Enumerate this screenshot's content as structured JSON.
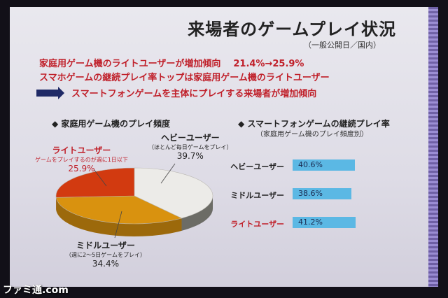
{
  "slide": {
    "title": "来場者のゲームプレイ状況",
    "subtitle": "（一般公開日／国内）",
    "line1_text": "家庭用ゲーム機のライトユーザーが増加傾向",
    "line1_value": "21.4%→25.9%",
    "line2_text": "スマホゲームの継続プレイ率トップは家庭用ゲーム機のライトユーザー",
    "line3_text": "スマートフォンゲームを主体にプレイする来場者が増加傾向",
    "colors": {
      "accent_red": "#c0202a",
      "arrow_navy": "#1f2a66"
    }
  },
  "logo_text": "ファミ通.com",
  "chart_data": [
    {
      "type": "pie",
      "title": "◆ 家庭用ゲーム機のプレイ頻度",
      "slices": [
        {
          "name": "ヘビーユーザー",
          "note": "（ほとんど毎日ゲームをプレイ）",
          "value": 39.7,
          "label": "39.7%",
          "color": "#ecebe8"
        },
        {
          "name": "ミドルユーザー",
          "note": "（週に2～5日ゲームをプレイ）",
          "value": 34.4,
          "label": "34.4%",
          "color": "#d9920f"
        },
        {
          "name": "ライトユーザー",
          "note": "ゲームをプレイするのが週に1日以下",
          "value": 25.9,
          "label": "25.9%",
          "color": "#d23a10"
        }
      ]
    },
    {
      "type": "bar",
      "title": "◆ スマートフォンゲームの継続プレイ率",
      "subtitle": "（家庭用ゲーム機のプレイ頻度別）",
      "categories": [
        "ヘビーユーザー",
        "ミドルユーザー",
        "ライトユーザー"
      ],
      "values": [
        40.6,
        38.6,
        41.2
      ],
      "value_labels": [
        "40.6%",
        "38.6%",
        "41.2%"
      ],
      "bar_color": "#5bb8e4"
    }
  ]
}
